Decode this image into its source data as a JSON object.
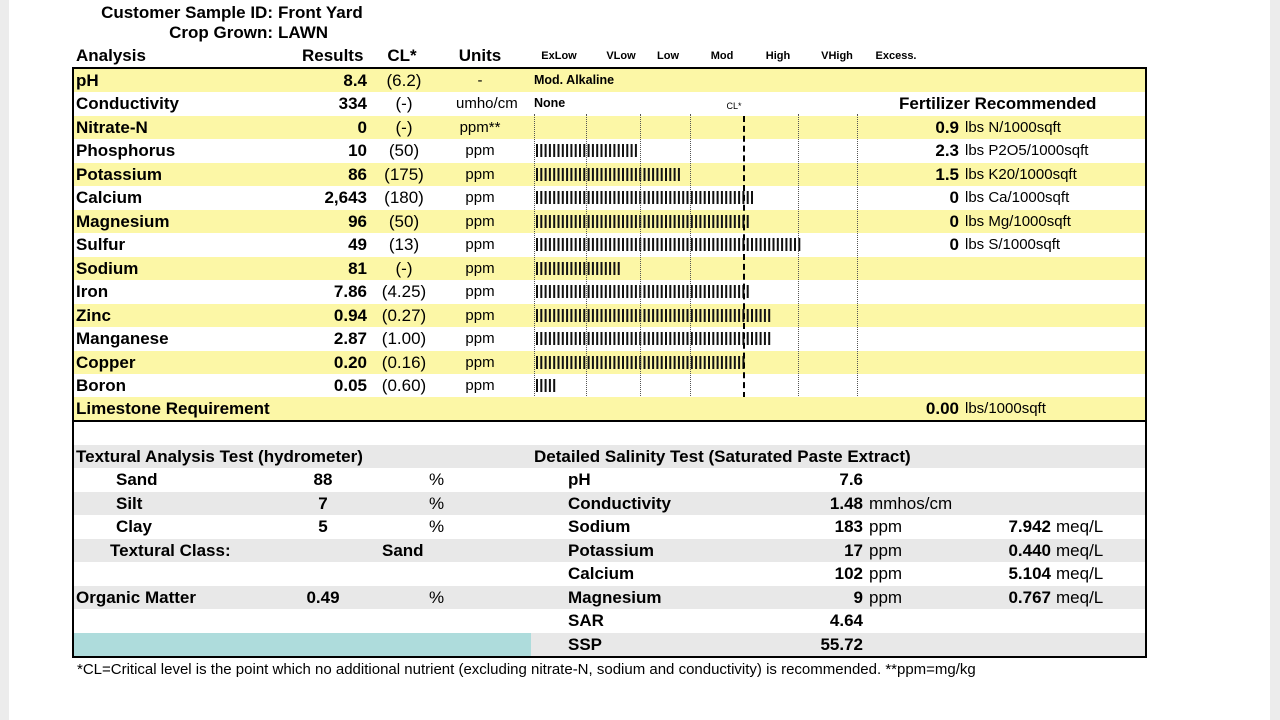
{
  "header": {
    "sample_label": "Customer Sample ID:",
    "sample_value": "Front Yard",
    "crop_label": "Crop Grown:",
    "crop_value": "LAWN"
  },
  "columns": {
    "analysis": "Analysis",
    "results": "Results",
    "cl": "CL*",
    "units": "Units",
    "levels": [
      "ExLow",
      "VLow",
      "Low",
      "Mod",
      "High",
      "VHigh",
      "Excess."
    ],
    "cl_marker": "CL*",
    "fertilizer_header": "Fertilizer Recommended"
  },
  "colors": {
    "highlight_row": "#fcf7a6",
    "gray_row": "#e8e8e8",
    "teal_block": "#aedcdc"
  },
  "analysis_rows": [
    {
      "name": "pH",
      "result": "8.4",
      "cl": "(6.2)",
      "unit": "-",
      "text": "Mod. Alkaline",
      "bar_ticks": 0,
      "fert_value": "",
      "fert_unit": ""
    },
    {
      "name": "Conductivity",
      "result": "334",
      "cl": "(-)",
      "unit": "umho/cm",
      "text": "None",
      "bar_ticks": 0,
      "fert_value": "",
      "fert_unit": ""
    },
    {
      "name": "Nitrate-N",
      "result": "0",
      "cl": "(-)",
      "unit": "ppm**",
      "text": "",
      "bar_ticks": 0,
      "fert_value": "0.9",
      "fert_unit": "lbs N/1000sqft"
    },
    {
      "name": "Phosphorus",
      "result": "10",
      "cl": "(50)",
      "unit": "ppm",
      "text": "",
      "bar_ticks": 24,
      "fert_value": "2.3",
      "fert_unit": "lbs P2O5/1000sqft"
    },
    {
      "name": "Potassium",
      "result": "86",
      "cl": "(175)",
      "unit": "ppm",
      "text": "",
      "bar_ticks": 34,
      "fert_value": "1.5",
      "fert_unit": "lbs K20/1000sqft"
    },
    {
      "name": "Calcium",
      "result": "2,643",
      "cl": "(180)",
      "unit": "ppm",
      "text": "",
      "bar_ticks": 51,
      "fert_value": "0",
      "fert_unit": "lbs Ca/1000sqft"
    },
    {
      "name": "Magnesium",
      "result": "96",
      "cl": "(50)",
      "unit": "ppm",
      "text": "",
      "bar_ticks": 50,
      "fert_value": "0",
      "fert_unit": "lbs Mg/1000sqft"
    },
    {
      "name": "Sulfur",
      "result": "49",
      "cl": "(13)",
      "unit": "ppm",
      "text": "",
      "bar_ticks": 62,
      "fert_value": "0",
      "fert_unit": "lbs S/1000sqft"
    },
    {
      "name": "Sodium",
      "result": "81",
      "cl": "(-)",
      "unit": "ppm",
      "text": "",
      "bar_ticks": 20,
      "fert_value": "",
      "fert_unit": ""
    },
    {
      "name": "Iron",
      "result": "7.86",
      "cl": "(4.25)",
      "unit": "ppm",
      "text": "",
      "bar_ticks": 50,
      "fert_value": "",
      "fert_unit": ""
    },
    {
      "name": "Zinc",
      "result": "0.94",
      "cl": "(0.27)",
      "unit": "ppm",
      "text": "",
      "bar_ticks": 55,
      "fert_value": "",
      "fert_unit": ""
    },
    {
      "name": "Manganese",
      "result": "2.87",
      "cl": "(1.00)",
      "unit": "ppm",
      "text": "",
      "bar_ticks": 55,
      "fert_value": "",
      "fert_unit": ""
    },
    {
      "name": "Copper",
      "result": "0.20",
      "cl": "(0.16)",
      "unit": "ppm",
      "text": "",
      "bar_ticks": 49,
      "fert_value": "",
      "fert_unit": ""
    },
    {
      "name": "Boron",
      "result": "0.05",
      "cl": "(0.60)",
      "unit": "ppm",
      "text": "",
      "bar_ticks": 5,
      "fert_value": "",
      "fert_unit": ""
    }
  ],
  "limestone": {
    "label": "Limestone Requirement",
    "value": "0.00",
    "unit": "lbs/1000sqft"
  },
  "textural": {
    "title": "Textural Analysis Test (hydrometer)",
    "rows": [
      {
        "label": "Sand",
        "value": "88",
        "unit": "%"
      },
      {
        "label": "Silt",
        "value": "7",
        "unit": "%"
      },
      {
        "label": "Clay",
        "value": "5",
        "unit": "%"
      }
    ],
    "class_label": "Textural Class:",
    "class_value": "Sand",
    "organic_label": "Organic Matter",
    "organic_value": "0.49",
    "organic_unit": "%"
  },
  "salinity": {
    "title": "Detailed Salinity Test (Saturated Paste Extract)",
    "rows": [
      {
        "label": "pH",
        "value": "7.6",
        "unit": "",
        "meq": "",
        "meq_unit": ""
      },
      {
        "label": "Conductivity",
        "value": "1.48",
        "unit": "mmhos/cm",
        "meq": "",
        "meq_unit": ""
      },
      {
        "label": "Sodium",
        "value": "183",
        "unit": "ppm",
        "meq": "7.942",
        "meq_unit": "meq/L"
      },
      {
        "label": "Potassium",
        "value": "17",
        "unit": "ppm",
        "meq": "0.440",
        "meq_unit": "meq/L"
      },
      {
        "label": "Calcium",
        "value": "102",
        "unit": "ppm",
        "meq": "5.104",
        "meq_unit": "meq/L"
      },
      {
        "label": "Magnesium",
        "value": "9",
        "unit": "ppm",
        "meq": "0.767",
        "meq_unit": "meq/L"
      },
      {
        "label": "SAR",
        "value": "4.64",
        "unit": "",
        "meq": "",
        "meq_unit": ""
      },
      {
        "label": "SSP",
        "value": "55.72",
        "unit": "",
        "meq": "",
        "meq_unit": ""
      }
    ]
  },
  "footnote": "*CL=Critical level is the point which no additional nutrient (excluding nitrate-N, sodium and conductivity) is recommended. **ppm=mg/kg"
}
